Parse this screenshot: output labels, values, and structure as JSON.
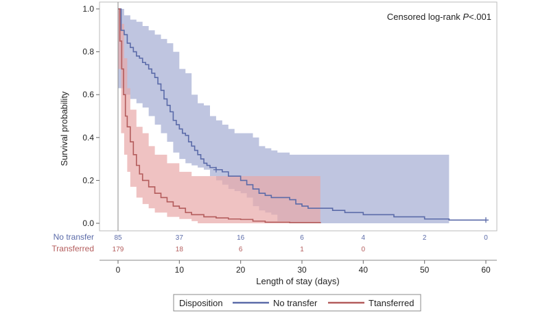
{
  "chart_data": {
    "type": "line",
    "subtype": "kaplan-meier",
    "title": "",
    "xlabel": "Length of stay (days)",
    "ylabel": "Survival probability",
    "xlim": [
      0,
      60
    ],
    "ylim": [
      0,
      1
    ],
    "xticks": [
      0,
      10,
      20,
      30,
      40,
      50,
      60
    ],
    "yticks": [
      "0.0",
      "0.2",
      "0.4",
      "0.6",
      "0.8",
      "1.0"
    ],
    "annotation": {
      "prefix": "Censored log-rank ",
      "p": "P",
      "suffix": "<.001"
    },
    "colors": {
      "no_transfer": "#5a6aa8",
      "no_transfer_band": "#aab2d6",
      "transferred": "#b35b5b",
      "transferred_band": "#e8a8a8"
    },
    "series": [
      {
        "name": "No transfer",
        "risk_label": "No transfer",
        "at_risk_times": [
          0,
          10,
          20,
          30,
          40,
          50,
          60
        ],
        "at_risk": [
          "85",
          "37",
          "16",
          "6",
          "4",
          "2",
          "0"
        ],
        "x": [
          0,
          0.5,
          1,
          1.5,
          2,
          2.5,
          3,
          3.5,
          4,
          4.5,
          5,
          5.5,
          6,
          6.5,
          7,
          7.5,
          8,
          8.5,
          9,
          9.5,
          10,
          10.5,
          11,
          11.5,
          12,
          12.5,
          13,
          13.5,
          14,
          14.5,
          15,
          16,
          17,
          18,
          19,
          20,
          21,
          22,
          23,
          24,
          25,
          26,
          27,
          28,
          29,
          30,
          31,
          33,
          35,
          37,
          38,
          40,
          45,
          50,
          54,
          60
        ],
        "y": [
          1.0,
          0.9,
          0.88,
          0.84,
          0.82,
          0.8,
          0.78,
          0.77,
          0.75,
          0.74,
          0.72,
          0.7,
          0.68,
          0.65,
          0.62,
          0.58,
          0.55,
          0.52,
          0.48,
          0.46,
          0.44,
          0.42,
          0.41,
          0.38,
          0.36,
          0.34,
          0.32,
          0.3,
          0.28,
          0.27,
          0.26,
          0.25,
          0.24,
          0.22,
          0.22,
          0.2,
          0.18,
          0.16,
          0.14,
          0.13,
          0.12,
          0.12,
          0.12,
          0.11,
          0.09,
          0.08,
          0.07,
          0.07,
          0.06,
          0.05,
          0.05,
          0.04,
          0.03,
          0.02,
          0.015,
          0.015
        ],
        "ci_x": [
          0,
          1,
          2,
          3,
          4,
          5,
          6,
          7,
          8,
          9,
          10,
          11,
          12,
          13,
          14,
          15,
          16,
          17,
          18,
          19,
          20,
          21,
          22,
          23,
          24,
          25,
          26,
          28,
          30,
          33,
          40,
          50,
          54
        ],
        "ci_upper": [
          1.0,
          0.97,
          0.95,
          0.94,
          0.92,
          0.9,
          0.88,
          0.86,
          0.84,
          0.8,
          0.72,
          0.7,
          0.6,
          0.56,
          0.55,
          0.5,
          0.48,
          0.46,
          0.44,
          0.42,
          0.42,
          0.42,
          0.4,
          0.36,
          0.35,
          0.34,
          0.33,
          0.32,
          0.32,
          0.32,
          0.32,
          0.32,
          0.32
        ],
        "ci_lower": [
          0.63,
          0.63,
          0.6,
          0.58,
          0.56,
          0.54,
          0.5,
          0.46,
          0.42,
          0.38,
          0.33,
          0.3,
          0.28,
          0.27,
          0.26,
          0.25,
          0.22,
          0.2,
          0.18,
          0.16,
          0.15,
          0.14,
          0.12,
          0.08,
          0.06,
          0.05,
          0.04,
          0.01,
          0.0,
          0.0,
          0.0,
          0.0,
          0.0
        ],
        "censor_x": [
          16,
          60
        ],
        "censor_y": [
          0.25,
          0.015
        ]
      },
      {
        "name": "Ttansferred",
        "risk_label": "Transferred",
        "at_risk_times": [
          0,
          10,
          20,
          30,
          40
        ],
        "at_risk": [
          "179",
          "18",
          "6",
          "1",
          "0"
        ],
        "x": [
          0,
          0.3,
          0.6,
          0.9,
          1.2,
          1.5,
          2,
          2.5,
          3,
          3.5,
          4,
          5,
          6,
          7,
          8,
          9,
          10,
          11,
          12,
          14,
          16,
          18,
          20,
          22,
          24,
          26,
          28,
          30,
          33
        ],
        "y": [
          1.0,
          0.85,
          0.72,
          0.6,
          0.5,
          0.45,
          0.38,
          0.32,
          0.27,
          0.23,
          0.2,
          0.17,
          0.14,
          0.12,
          0.1,
          0.08,
          0.07,
          0.05,
          0.04,
          0.03,
          0.025,
          0.02,
          0.018,
          0.01,
          0.005,
          0.005,
          0.003,
          0.003,
          0.0
        ],
        "ci_x": [
          0,
          0.5,
          1,
          1.5,
          2,
          3,
          4,
          5,
          6,
          8,
          10,
          12,
          13,
          15,
          20,
          25,
          30,
          33
        ],
        "ci_upper": [
          1.0,
          0.93,
          0.77,
          0.63,
          0.53,
          0.45,
          0.42,
          0.36,
          0.32,
          0.28,
          0.24,
          0.22,
          0.22,
          0.22,
          0.22,
          0.22,
          0.22,
          0.22
        ],
        "ci_lower": [
          0.82,
          0.72,
          0.42,
          0.32,
          0.24,
          0.17,
          0.12,
          0.09,
          0.07,
          0.05,
          0.03,
          0.02,
          0.01,
          0.0,
          0.0,
          0.0,
          0.0,
          0.0
        ]
      }
    ],
    "legend": {
      "title": "Disposition",
      "position": "bottom-center",
      "items": [
        "No transfer",
        "Ttansferred"
      ]
    }
  }
}
